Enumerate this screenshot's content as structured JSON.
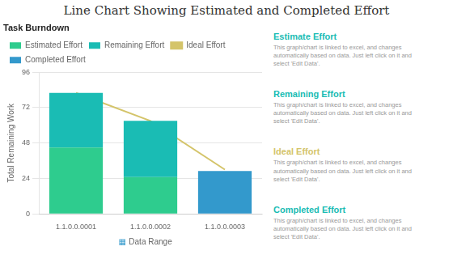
{
  "chart_data": {
    "type": "bar",
    "title": "Line Chart Showing Estimated and Completed Effort",
    "subtitle": "Task Burndown",
    "categories": [
      "1.1.0.0.0001",
      "1.1.0.0.0002",
      "1.1.0.0.0003"
    ],
    "series": [
      {
        "name": "Estimated Effort",
        "color": "#2ecc8e",
        "values": [
          45,
          25,
          0
        ]
      },
      {
        "name": "Remaining Effort",
        "color": "#1abcb4",
        "values": [
          37,
          38,
          0
        ]
      },
      {
        "name": "Ideal Effort",
        "type": "line",
        "color": "#d4c46a",
        "values": [
          82,
          63,
          30
        ]
      },
      {
        "name": "Completed Effort",
        "color": "#3399cc",
        "values": [
          0,
          0,
          29
        ]
      }
    ],
    "x_label": "Data Range",
    "x_label_icon": {
      "text": "▦",
      "color": "#3399cc"
    },
    "y_label": "Total Remaining Work",
    "ylim": [
      0,
      96
    ],
    "yticks": [
      0,
      24,
      48,
      72,
      96
    ],
    "grid": true,
    "stacked": true,
    "legend": "upper left",
    "annotations": [
      {
        "title": "Estimate Effort",
        "title_color": "#1abcb4",
        "text": "This graph/chart is linked to excel, and changes\nautomatically based on data. Just left click on it and\nselect 'Edit Data'.",
        "color": "#999999"
      },
      {
        "title": "Remaining Effort",
        "title_color": "#1abcb4",
        "text": "This graph/chart is linked to excel, and changes\nautomatically based on data. Just left click on it and\nselect 'Edit Data'.",
        "color": "#999999"
      },
      {
        "title": "Ideal Effort",
        "title_color": "#d4c46a",
        "text": "This graph/chart is linked to excel, and changes\nautomatically based on data. Just left click on it and\nselect 'Edit Data'.",
        "color": "#999999"
      },
      {
        "title": "Completed Effort",
        "title_color": "#1abcb4",
        "text": "This graph/chart is linked to excel, and changes\nautomatically based on data. Just left click on it and\nselect 'Edit Data'.",
        "color": "#999999"
      }
    ]
  }
}
